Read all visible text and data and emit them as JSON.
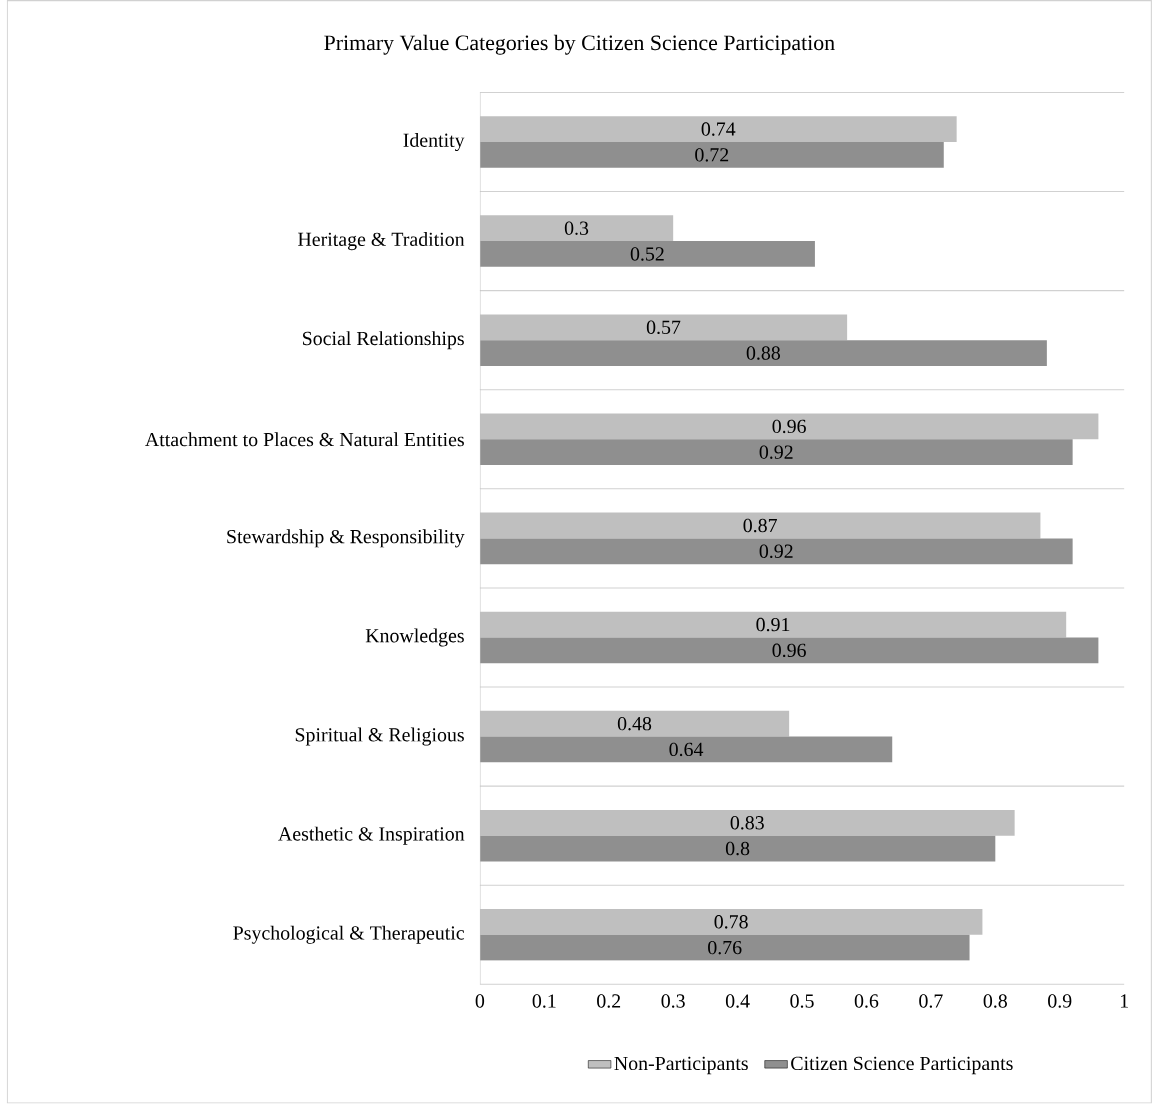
{
  "chart_data": {
    "type": "bar",
    "orientation": "horizontal",
    "title": "Primary Value Categories by Citizen Science Participation",
    "categories": [
      "Identity",
      "Heritage & Tradition",
      "Social Relationships",
      "Attachment to Places & Natural Entities",
      "Stewardship & Responsibility",
      "Knowledges",
      "Spiritual & Religious",
      "Aesthetic & Inspiration",
      "Psychological & Therapeutic"
    ],
    "series": [
      {
        "name": "Non-Participants",
        "color": "#bfbfbf",
        "values": [
          0.74,
          0.3,
          0.57,
          0.96,
          0.87,
          0.91,
          0.48,
          0.83,
          0.78
        ]
      },
      {
        "name": "Citizen Science Participants",
        "color": "#8f8f8f",
        "values": [
          0.72,
          0.52,
          0.88,
          0.92,
          0.92,
          0.96,
          0.64,
          0.8,
          0.76
        ]
      }
    ],
    "xlim": [
      0,
      1
    ],
    "xticks": [
      0,
      0.1,
      0.2,
      0.3,
      0.4,
      0.5,
      0.6,
      0.7,
      0.8,
      0.9,
      1
    ],
    "grid": "y",
    "legend": "bottom",
    "data_labels": true
  }
}
